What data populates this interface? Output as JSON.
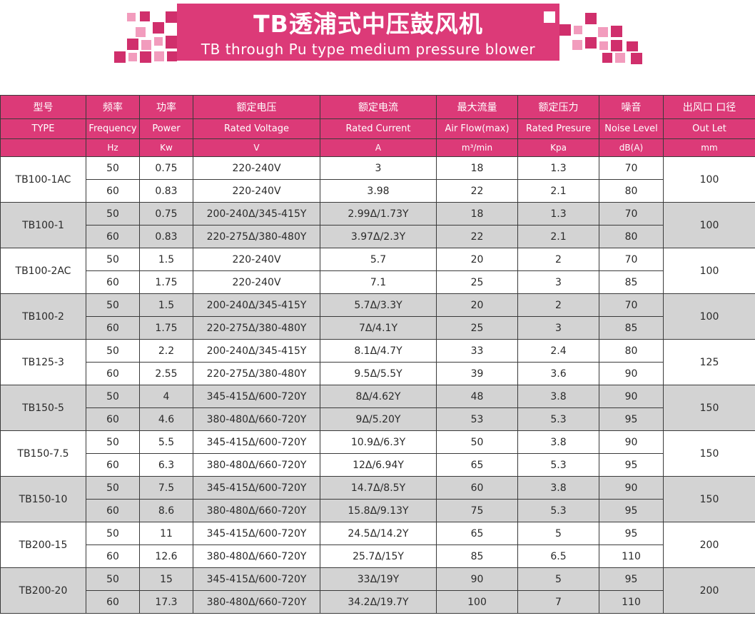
{
  "banner": {
    "title": "TB透浦式中压鼓风机",
    "subtitle": "TB through Pu type medium pressure blower"
  },
  "colors": {
    "accent": "#dc3a78",
    "accent_light": "#f29cbd",
    "row_gray": "#d3d3d3"
  },
  "table": {
    "headers_zh": [
      "型号",
      "频率",
      "功率",
      "额定电压",
      "额定电流",
      "最大流量",
      "额定压力",
      "噪音",
      "出风口 口径"
    ],
    "headers_en": [
      "TYPE",
      "Frequency",
      "Power",
      "Rated Voltage",
      "Rated Current",
      "Air Flow(max)",
      "Rated Presure",
      "Noise Level",
      "Out Let"
    ],
    "units": [
      "",
      "Hz",
      "Kw",
      "V",
      "A",
      "m³/min",
      "Kpa",
      "dB(A)",
      "mm"
    ],
    "models": [
      {
        "type": "TB100-1AC",
        "outlet": "100",
        "rows": [
          {
            "freq": "50",
            "power": "0.75",
            "voltage": "220-240V",
            "current": "3",
            "flow": "18",
            "pressure": "1.3",
            "noise": "70"
          },
          {
            "freq": "60",
            "power": "0.83",
            "voltage": "220-240V",
            "current": "3.98",
            "flow": "22",
            "pressure": "2.1",
            "noise": "80"
          }
        ]
      },
      {
        "type": "TB100-1",
        "outlet": "100",
        "rows": [
          {
            "freq": "50",
            "power": "0.75",
            "voltage": "200-240Δ/345-415Y",
            "current": "2.99Δ/1.73Y",
            "flow": "18",
            "pressure": "1.3",
            "noise": "70"
          },
          {
            "freq": "60",
            "power": "0.83",
            "voltage": "220-275Δ/380-480Y",
            "current": "3.97Δ/2.3Y",
            "flow": "22",
            "pressure": "2.1",
            "noise": "80"
          }
        ]
      },
      {
        "type": "TB100-2AC",
        "outlet": "100",
        "rows": [
          {
            "freq": "50",
            "power": "1.5",
            "voltage": "220-240V",
            "current": "5.7",
            "flow": "20",
            "pressure": "2",
            "noise": "70"
          },
          {
            "freq": "60",
            "power": "1.75",
            "voltage": "220-240V",
            "current": "7.1",
            "flow": "25",
            "pressure": "3",
            "noise": "85"
          }
        ]
      },
      {
        "type": "TB100-2",
        "outlet": "100",
        "rows": [
          {
            "freq": "50",
            "power": "1.5",
            "voltage": "200-240Δ/345-415Y",
            "current": "5.7Δ/3.3Y",
            "flow": "20",
            "pressure": "2",
            "noise": "70"
          },
          {
            "freq": "60",
            "power": "1.75",
            "voltage": "220-275Δ/380-480Y",
            "current": "7Δ/4.1Y",
            "flow": "25",
            "pressure": "3",
            "noise": "85"
          }
        ]
      },
      {
        "type": "TB125-3",
        "outlet": "125",
        "rows": [
          {
            "freq": "50",
            "power": "2.2",
            "voltage": "200-240Δ/345-415Y",
            "current": "8.1Δ/4.7Y",
            "flow": "33",
            "pressure": "2.4",
            "noise": "80"
          },
          {
            "freq": "60",
            "power": "2.55",
            "voltage": "220-275Δ/380-480Y",
            "current": "9.5Δ/5.5Y",
            "flow": "39",
            "pressure": "3.6",
            "noise": "90"
          }
        ]
      },
      {
        "type": "TB150-5",
        "outlet": "150",
        "rows": [
          {
            "freq": "50",
            "power": "4",
            "voltage": "345-415Δ/600-720Y",
            "current": "8Δ/4.62Y",
            "flow": "48",
            "pressure": "3.8",
            "noise": "90"
          },
          {
            "freq": "60",
            "power": "4.6",
            "voltage": "380-480Δ/660-720Y",
            "current": "9Δ/5.20Y",
            "flow": "53",
            "pressure": "5.3",
            "noise": "95"
          }
        ]
      },
      {
        "type": "TB150-7.5",
        "outlet": "150",
        "rows": [
          {
            "freq": "50",
            "power": "5.5",
            "voltage": "345-415Δ/600-720Y",
            "current": "10.9Δ/6.3Y",
            "flow": "50",
            "pressure": "3.8",
            "noise": "90"
          },
          {
            "freq": "60",
            "power": "6.3",
            "voltage": "380-480Δ/660-720Y",
            "current": "12Δ/6.94Y",
            "flow": "65",
            "pressure": "5.3",
            "noise": "95"
          }
        ]
      },
      {
        "type": "TB150-10",
        "outlet": "150",
        "rows": [
          {
            "freq": "50",
            "power": "7.5",
            "voltage": "345-415Δ/600-720Y",
            "current": "14.7Δ/8.5Y",
            "flow": "60",
            "pressure": "3.8",
            "noise": "90"
          },
          {
            "freq": "60",
            "power": "8.6",
            "voltage": "380-480Δ/660-720Y",
            "current": "15.8Δ/9.13Y",
            "flow": "75",
            "pressure": "5.3",
            "noise": "95"
          }
        ]
      },
      {
        "type": "TB200-15",
        "outlet": "200",
        "rows": [
          {
            "freq": "50",
            "power": "11",
            "voltage": "345-415Δ/600-720Y",
            "current": "24.5Δ/14.2Y",
            "flow": "65",
            "pressure": "5",
            "noise": "95"
          },
          {
            "freq": "60",
            "power": "12.6",
            "voltage": "380-480Δ/660-720Y",
            "current": "25.7Δ/15Y",
            "flow": "85",
            "pressure": "6.5",
            "noise": "110"
          }
        ]
      },
      {
        "type": "TB200-20",
        "outlet": "200",
        "rows": [
          {
            "freq": "50",
            "power": "15",
            "voltage": "345-415Δ/600-720Y",
            "current": "33Δ/19Y",
            "flow": "90",
            "pressure": "5",
            "noise": "95"
          },
          {
            "freq": "60",
            "power": "17.3",
            "voltage": "380-480Δ/660-720Y",
            "current": "34.2Δ/19.7Y",
            "flow": "100",
            "pressure": "7",
            "noise": "110"
          }
        ]
      }
    ]
  }
}
